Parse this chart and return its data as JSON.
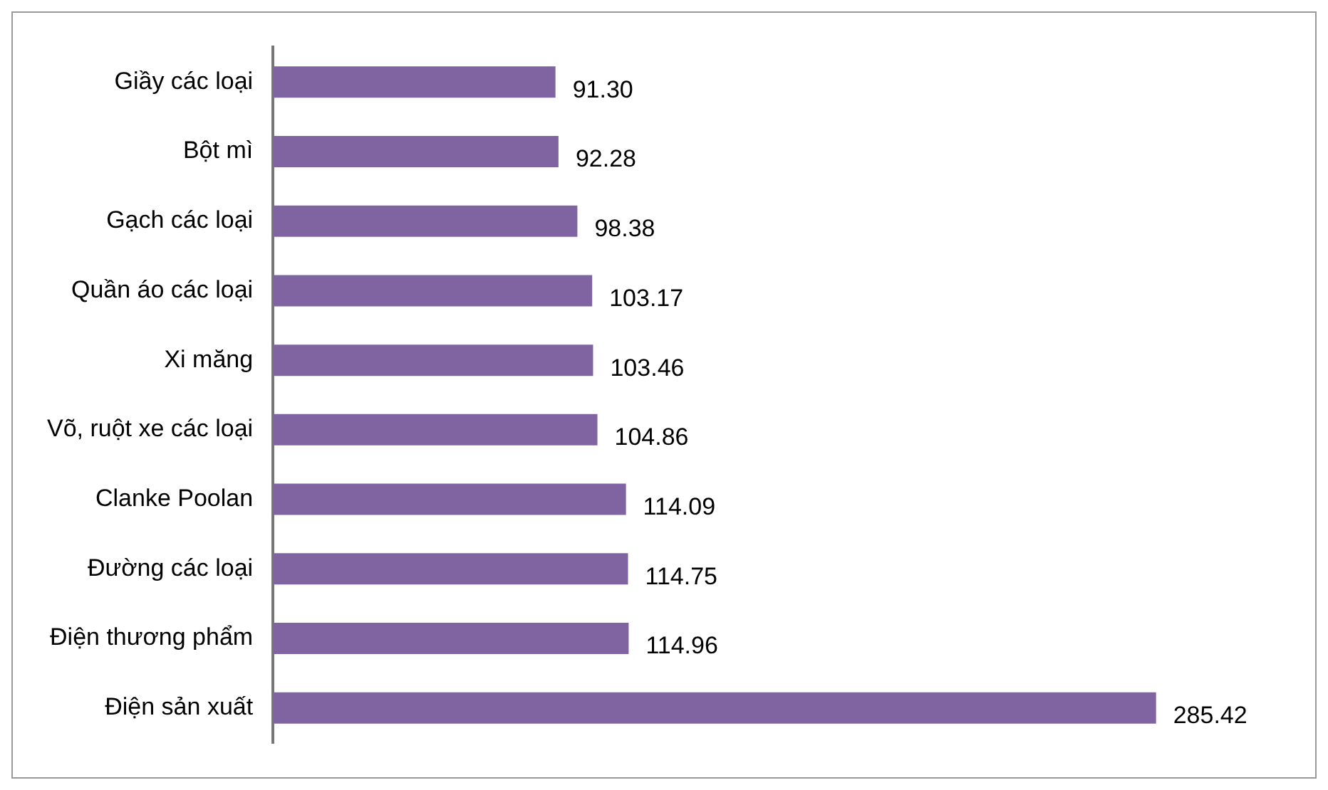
{
  "chart_data": {
    "type": "bar",
    "orientation": "horizontal",
    "categories": [
      "Giầy các loại",
      "Bột mì",
      "Gạch các loại",
      "Quần áo các loại",
      "Xi măng",
      "Võ, ruột xe các loại",
      "Clanke Poolan",
      "Đường các loại",
      "Điện thương phẩm",
      "Điện sản xuất"
    ],
    "values": [
      91.3,
      92.28,
      98.38,
      103.17,
      103.46,
      104.86,
      114.09,
      114.75,
      114.96,
      285.42
    ],
    "value_labels": [
      "91.30",
      "92.28",
      "98.38",
      "103.17",
      "103.46",
      "104.86",
      "114.09",
      "114.75",
      "114.96",
      "285.42"
    ],
    "color": "#8064a2",
    "tick_labels": "y"
  }
}
